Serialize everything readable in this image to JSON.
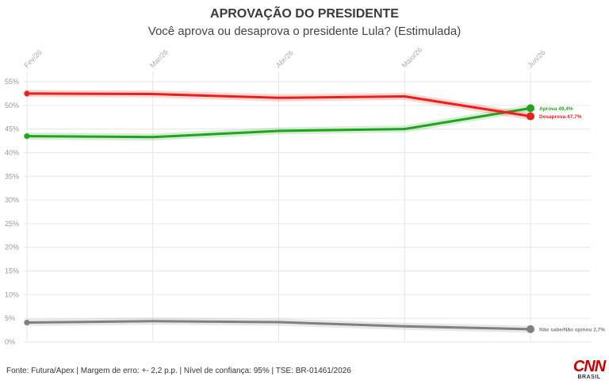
{
  "chart_data": {
    "type": "line",
    "title": "APROVAÇÃO DO PRESIDENTE",
    "subtitle": "Você aprova ou desaprova o presidente Lula? (Estimulada)",
    "categories": [
      "Fev/26",
      "Mar/26",
      "Abr/26",
      "Maio/26",
      "Jun/26"
    ],
    "ylim": [
      0,
      55
    ],
    "yticks": [
      "0%",
      "5%",
      "10%",
      "15%",
      "20%",
      "25%",
      "30%",
      "35%",
      "40%",
      "45%",
      "50%",
      "55%"
    ],
    "grid": true,
    "series": [
      {
        "name": "Aprova",
        "values": [
          43.5,
          43.3,
          44.6,
          45.0,
          49.4
        ],
        "color": "#22a31f",
        "end_label": "Aprova 49,4%"
      },
      {
        "name": "Desaprova",
        "values": [
          52.5,
          52.4,
          51.6,
          51.9,
          47.7
        ],
        "color": "#e8211c",
        "end_label": "Desaprova 47,7%"
      },
      {
        "name": "Não sabe/Não opinou",
        "values": [
          4.1,
          4.4,
          4.2,
          3.3,
          2.7
        ],
        "color": "#808080",
        "end_label": "Não sabe/Não opinou 2,7%"
      }
    ]
  },
  "footer": {
    "source": "Fonte: Futura/Apex | Margem de erro: +- 2,2 p.p. | Nível de confiança: 95% | TSE: BR-01461/2026"
  },
  "logo": {
    "main": "CNN",
    "sub": "BRASIL",
    "color": "#cc0000"
  }
}
